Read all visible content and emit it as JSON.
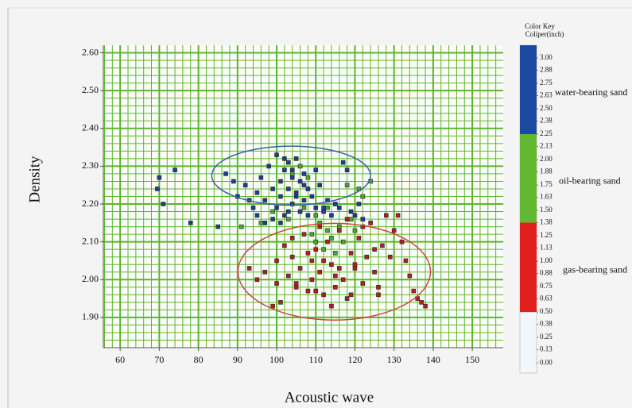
{
  "chart_data": {
    "type": "scatter",
    "x_label": "Acoustic wave",
    "y_label": "Density",
    "xlim": [
      55.7,
      157.9
    ],
    "ylim": [
      1.82,
      2.62
    ],
    "xticks": [
      60,
      70,
      80,
      90,
      100,
      110,
      120,
      130,
      140,
      150
    ],
    "yticks": [
      {
        "value": 1.9,
        "label": "1.90"
      },
      {
        "value": 2.0,
        "label": "2.00"
      },
      {
        "value": 2.1,
        "label": "2.10"
      },
      {
        "value": 2.2,
        "label": "2.20"
      },
      {
        "value": 2.3,
        "label": "2.30"
      },
      {
        "value": 2.4,
        "label": "2.40"
      },
      {
        "value": 2.5,
        "label": "2.50"
      },
      {
        "value": 2.6,
        "label": "2.60"
      }
    ],
    "grid": true,
    "grid_color": "#5cb52c",
    "color_key": {
      "title": "Color Key",
      "subtitle": "Coliper(inch)",
      "clim": [
        -0.1,
        3.125
      ],
      "ticks": [
        {
          "value": 3.0,
          "label": "3.00"
        },
        {
          "value": 2.88,
          "label": "2.88"
        },
        {
          "value": 2.75,
          "label": "2.75"
        },
        {
          "value": 2.63,
          "label": "2.63"
        },
        {
          "value": 2.5,
          "label": "2.50"
        },
        {
          "value": 2.38,
          "label": "2.38"
        },
        {
          "value": 2.25,
          "label": "2.25"
        },
        {
          "value": 2.13,
          "label": "2.13"
        },
        {
          "value": 2.0,
          "label": "2.00"
        },
        {
          "value": 1.88,
          "label": "1.88"
        },
        {
          "value": 1.75,
          "label": "1.75"
        },
        {
          "value": 1.63,
          "label": "1.63"
        },
        {
          "value": 1.5,
          "label": "1.50"
        },
        {
          "value": 1.38,
          "label": "1.38"
        },
        {
          "value": 1.25,
          "label": "1.25"
        },
        {
          "value": 1.13,
          "label": "1.13"
        },
        {
          "value": 1.0,
          "label": "1.00"
        },
        {
          "value": 0.88,
          "label": "0.88"
        },
        {
          "value": 0.75,
          "label": "0.75"
        },
        {
          "value": 0.63,
          "label": "0.63"
        },
        {
          "value": 0.5,
          "label": "0.50"
        },
        {
          "value": 0.38,
          "label": "0.38"
        },
        {
          "value": 0.25,
          "label": "0.25"
        },
        {
          "value": 0.13,
          "label": "0.13"
        },
        {
          "value": 0.0,
          "label": "0.00"
        }
      ]
    },
    "ellipses": [
      {
        "color": "#3a5fa8",
        "cx": 103.7,
        "cy": 2.275,
        "rx": 20.3,
        "ry": 0.078
      },
      {
        "color": "#c8493c",
        "cx": 114.7,
        "cy": 2.021,
        "rx": 24.6,
        "ry": 0.128
      }
    ],
    "series": [
      {
        "name": "water-bearing sand",
        "color": "#1c3f94",
        "key_color": "#1c4aa0",
        "range": [
          2.25,
          3.125
        ],
        "x": [
          70,
          71,
          74,
          78,
          69.5,
          85,
          87,
          89,
          90,
          92,
          94,
          95,
          96,
          97,
          98,
          99,
          100,
          100,
          101,
          101,
          102,
          102,
          103,
          103,
          104,
          104,
          105,
          105,
          106,
          106,
          107,
          107,
          108,
          108,
          109,
          110,
          111,
          112,
          113,
          114,
          115,
          116,
          117,
          118,
          119,
          120,
          121,
          122,
          99,
          101,
          103,
          105,
          97,
          95,
          93,
          107,
          104,
          102,
          110,
          112
        ],
        "values": [
          2.27,
          2.2,
          2.29,
          2.15,
          2.24,
          2.14,
          2.28,
          2.26,
          2.22,
          2.25,
          2.19,
          2.23,
          2.27,
          2.21,
          2.3,
          2.24,
          2.33,
          2.19,
          2.26,
          2.22,
          2.29,
          2.17,
          2.31,
          2.24,
          2.2,
          2.27,
          2.23,
          2.32,
          2.18,
          2.26,
          2.21,
          2.28,
          2.24,
          2.17,
          2.22,
          2.19,
          2.25,
          2.18,
          2.21,
          2.17,
          2.2,
          2.19,
          2.31,
          2.29,
          2.18,
          2.17,
          2.2,
          2.16,
          2.16,
          2.15,
          2.18,
          2.22,
          2.15,
          2.17,
          2.21,
          2.25,
          2.29,
          2.32,
          2.29,
          2.19
        ]
      },
      {
        "name": "oil-bearing sand",
        "color": "#4aa83a",
        "key_color": "#62b830",
        "range": [
          1.38,
          2.25
        ],
        "x": [
          91,
          96,
          99,
          103,
          106,
          108,
          109,
          110,
          111,
          112,
          113,
          114,
          115,
          116,
          117,
          118,
          119,
          120,
          121,
          122,
          107,
          110,
          113,
          104,
          124
        ],
        "values": [
          2.14,
          2.15,
          2.18,
          2.16,
          2.3,
          2.27,
          2.12,
          2.1,
          2.15,
          2.08,
          2.13,
          2.11,
          2.07,
          2.14,
          2.1,
          2.25,
          2.16,
          2.13,
          2.24,
          2.22,
          2.19,
          2.17,
          2.19,
          2.28,
          2.26
        ]
      },
      {
        "name": "gas-bearing sand",
        "color": "#b61e1e",
        "key_color": "#e0201c",
        "range": [
          0.5,
          1.38
        ],
        "x": [
          93,
          95,
          97,
          99,
          100,
          101,
          102,
          103,
          104,
          105,
          106,
          107,
          108,
          109,
          110,
          111,
          112,
          113,
          114,
          115,
          116,
          117,
          118,
          119,
          120,
          121,
          122,
          123,
          124,
          125,
          126,
          127,
          128,
          129,
          130,
          132,
          133,
          134,
          135,
          136,
          137,
          138,
          100,
          105,
          110,
          115,
          120,
          125,
          108,
          112,
          116,
          118,
          122,
          126,
          104,
          111,
          119,
          131,
          114,
          109
        ],
        "values": [
          2.03,
          2.0,
          2.02,
          1.93,
          2.05,
          1.94,
          2.09,
          2.01,
          2.06,
          1.99,
          2.03,
          2.12,
          1.97,
          2.05,
          2.08,
          2.02,
          1.96,
          2.1,
          2.04,
          1.98,
          2.13,
          2.0,
          1.95,
          2.07,
          2.03,
          2.11,
          1.99,
          2.06,
          2.15,
          2.02,
          1.98,
          2.09,
          2.17,
          2.06,
          2.13,
          2.1,
          2.05,
          2.01,
          1.97,
          1.95,
          1.94,
          1.93,
          1.99,
          1.98,
          1.97,
          2.01,
          2.04,
          2.08,
          2.07,
          2.05,
          2.03,
          2.16,
          2.14,
          1.96,
          2.11,
          2.14,
          1.96,
          2.17,
          1.93,
          2.0
        ]
      }
    ]
  }
}
